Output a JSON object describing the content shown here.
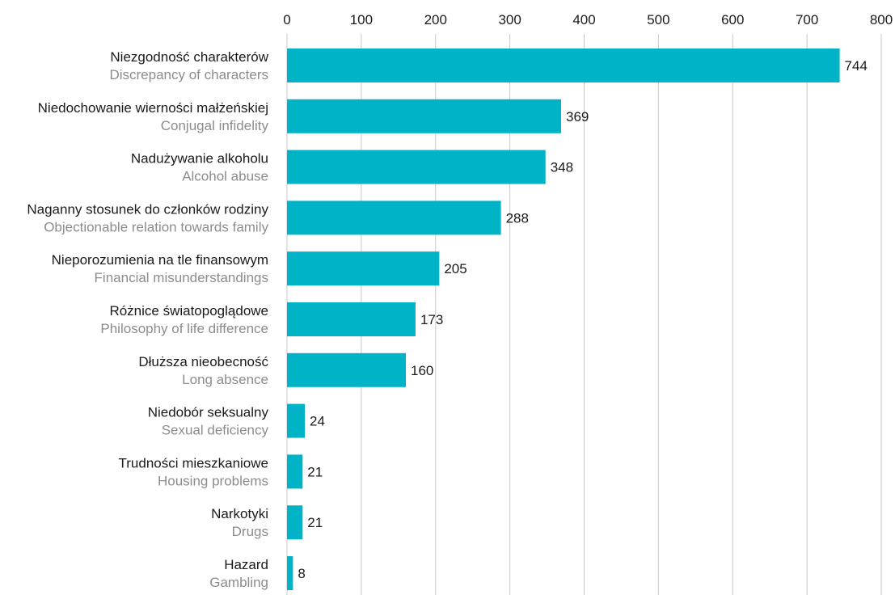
{
  "chart_data": {
    "type": "bar",
    "orientation": "horizontal",
    "title": "",
    "xlabel": "",
    "ylabel": "",
    "xlim": [
      0,
      800
    ],
    "ticks": [
      "0",
      "100",
      "200",
      "300",
      "400",
      "500",
      "600",
      "700",
      "800"
    ],
    "tick_values": [
      0,
      100,
      200,
      300,
      400,
      500,
      600,
      700,
      800
    ],
    "axis_position": "top",
    "grid": true,
    "bar_color": "#00b3c6",
    "categories": [
      {
        "pl": "Niezgodność charakterów",
        "en": "Discrepancy of characters"
      },
      {
        "pl": "Niedochowanie wierności małżeńskiej",
        "en": "Conjugal infidelity"
      },
      {
        "pl": "Nadużywanie alkoholu",
        "en": "Alcohol abuse"
      },
      {
        "pl": "Naganny stosunek do członków rodziny",
        "en": "Objectionable relation towards family"
      },
      {
        "pl": "Nieporozumienia na tle finansowym",
        "en": "Financial misunderstandings"
      },
      {
        "pl": "Różnice światopoglądowe",
        "en": "Philosophy of life difference"
      },
      {
        "pl": "Dłuższa nieobecność",
        "en": "Long absence"
      },
      {
        "pl": "Niedobór seksualny",
        "en": "Sexual deficiency"
      },
      {
        "pl": "Trudności mieszkaniowe",
        "en": "Housing problems"
      },
      {
        "pl": "Narkotyki",
        "en": "Drugs"
      },
      {
        "pl": "Hazard",
        "en": "Gambling"
      }
    ],
    "values": [
      744,
      369,
      348,
      288,
      205,
      173,
      160,
      24,
      21,
      21,
      8
    ]
  }
}
